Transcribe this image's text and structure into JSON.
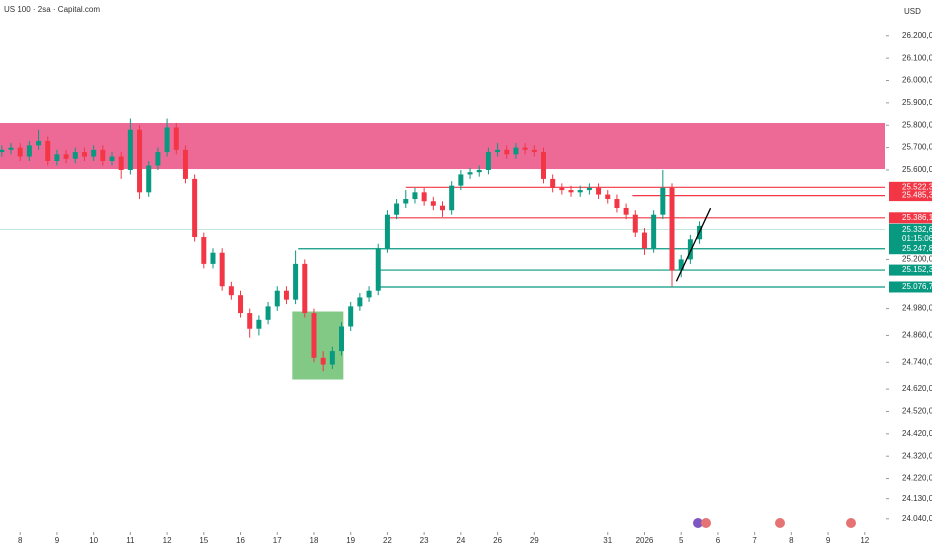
{
  "chart_data": {
    "type": "candlestick",
    "title": "US 100 · 2sa · Capital.com",
    "currency": "USD",
    "up_color": "#089981",
    "down_color": "#f23645",
    "xlim": [
      -0.55,
      23.55
    ],
    "ylim": [
      23990,
      26360
    ],
    "yticks": [
      {
        "value": 26200,
        "label": "26.200,0"
      },
      {
        "value": 26100,
        "label": "26.100,0"
      },
      {
        "value": 26000,
        "label": "26.000,0"
      },
      {
        "value": 25900,
        "label": "25.900,0"
      },
      {
        "value": 25800,
        "label": "25.800,0"
      },
      {
        "value": 25700,
        "label": "25.700,0"
      },
      {
        "value": 25600,
        "label": "25.600,0"
      },
      {
        "value": 25200,
        "label": "25.200,0"
      },
      {
        "value": 24980,
        "label": "24.980,0"
      },
      {
        "value": 24860,
        "label": "24.860,0"
      },
      {
        "value": 24740,
        "label": "24.740,0"
      },
      {
        "value": 24620,
        "label": "24.620,0"
      },
      {
        "value": 24520,
        "label": "24.520,0"
      },
      {
        "value": 24420,
        "label": "24.420,0"
      },
      {
        "value": 24320,
        "label": "24.320,0"
      },
      {
        "value": 24220,
        "label": "24.220,0"
      },
      {
        "value": 24130,
        "label": "24.130,0"
      },
      {
        "value": 24040,
        "label": "24.040,0"
      }
    ],
    "xticks": [
      {
        "value": 0,
        "label": "8"
      },
      {
        "value": 1,
        "label": "9"
      },
      {
        "value": 2,
        "label": "10"
      },
      {
        "value": 3,
        "label": "11"
      },
      {
        "value": 4,
        "label": "12"
      },
      {
        "value": 5,
        "label": "15"
      },
      {
        "value": 6,
        "label": "16"
      },
      {
        "value": 7,
        "label": "17"
      },
      {
        "value": 8,
        "label": "18"
      },
      {
        "value": 9,
        "label": "19"
      },
      {
        "value": 10,
        "label": "22"
      },
      {
        "value": 11,
        "label": "23"
      },
      {
        "value": 12,
        "label": "24"
      },
      {
        "value": 13,
        "label": "26"
      },
      {
        "value": 14,
        "label": "29"
      },
      {
        "value": 16,
        "label": "31"
      },
      {
        "value": 17,
        "label": "2026"
      },
      {
        "value": 18,
        "label": "5"
      },
      {
        "value": 19,
        "label": "6"
      },
      {
        "value": 20,
        "label": "7"
      },
      {
        "value": 21,
        "label": "8"
      },
      {
        "value": 22,
        "label": "9"
      },
      {
        "value": 23,
        "label": "12"
      }
    ],
    "x": [
      -0.5,
      -0.25,
      0,
      0.25,
      0.5,
      0.75,
      1,
      1.25,
      1.5,
      1.75,
      2,
      2.25,
      2.5,
      2.75,
      3,
      3.25,
      3.5,
      3.75,
      4,
      4.25,
      4.5,
      4.75,
      5,
      5.25,
      5.5,
      5.75,
      6,
      6.25,
      6.5,
      6.75,
      7,
      7.25,
      7.5,
      7.75,
      8,
      8.25,
      8.5,
      8.75,
      9,
      9.25,
      9.5,
      9.75,
      10,
      10.25,
      10.5,
      10.75,
      11,
      11.25,
      11.5,
      11.75,
      12,
      12.25,
      12.5,
      12.75,
      13,
      13.25,
      13.5,
      13.75,
      14,
      14.25,
      14.5,
      14.75,
      15,
      15.25,
      15.5,
      15.75,
      16,
      16.25,
      16.5,
      16.75,
      17,
      17.25,
      17.5,
      17.75,
      18,
      18.25,
      18.5
    ],
    "open": [
      25680,
      25690,
      25700,
      25660,
      25710,
      25730,
      25640,
      25670,
      25650,
      25680,
      25660,
      25690,
      25640,
      25660,
      25600,
      25780,
      25500,
      25620,
      25680,
      25790,
      25690,
      25560,
      25300,
      25180,
      25230,
      25080,
      25040,
      24960,
      24890,
      24930,
      24990,
      25060,
      25020,
      25180,
      24960,
      24760,
      24730,
      24790,
      24900,
      24990,
      25030,
      25060,
      25250,
      25400,
      25450,
      25470,
      25500,
      25460,
      25440,
      25420,
      25530,
      25580,
      25590,
      25600,
      25680,
      25690,
      25670,
      25700,
      25690,
      25680,
      25560,
      25520,
      25510,
      25500,
      25510,
      25520,
      25490,
      25470,
      25430,
      25400,
      25320,
      25250,
      25400,
      25520,
      25150,
      25200,
      25290
    ],
    "high": [
      25710,
      25720,
      25720,
      25730,
      25780,
      25750,
      25690,
      25690,
      25700,
      25700,
      25710,
      25710,
      25680,
      25680,
      25830,
      25800,
      25640,
      25700,
      25830,
      25810,
      25710,
      25580,
      25320,
      25250,
      25250,
      25100,
      25060,
      24980,
      24950,
      25010,
      25080,
      25080,
      25240,
      25200,
      24980,
      24790,
      24810,
      24920,
      25010,
      25050,
      25080,
      25270,
      25420,
      25470,
      25510,
      25520,
      25520,
      25480,
      25460,
      25550,
      25600,
      25610,
      25620,
      25700,
      25720,
      25710,
      25720,
      25720,
      25710,
      25700,
      25580,
      25540,
      25530,
      25530,
      25540,
      25540,
      25510,
      25490,
      25450,
      25420,
      25340,
      25420,
      25600,
      25540,
      25220,
      25310,
      25370
    ],
    "low": [
      25660,
      25670,
      25640,
      25640,
      25690,
      25620,
      25620,
      25630,
      25630,
      25640,
      25640,
      25620,
      25620,
      25560,
      25580,
      25470,
      25480,
      25600,
      25660,
      25670,
      25540,
      25280,
      25160,
      25160,
      25060,
      25020,
      24940,
      24850,
      24860,
      24910,
      24970,
      25000,
      25000,
      24940,
      24740,
      24700,
      24710,
      24770,
      24880,
      24970,
      25010,
      25040,
      25230,
      25380,
      25430,
      25450,
      25440,
      25420,
      25390,
      25400,
      25510,
      25560,
      25570,
      25580,
      25660,
      25650,
      25650,
      25670,
      25660,
      25540,
      25500,
      25490,
      25480,
      25480,
      25490,
      25470,
      25450,
      25410,
      25380,
      25300,
      25220,
      25230,
      25380,
      25080,
      25120,
      25180,
      25270
    ],
    "close": [
      25690,
      25700,
      25660,
      25710,
      25730,
      25640,
      25670,
      25650,
      25680,
      25660,
      25690,
      25640,
      25660,
      25600,
      25780,
      25500,
      25620,
      25680,
      25790,
      25690,
      25560,
      25300,
      25180,
      25230,
      25080,
      25040,
      24960,
      24890,
      24930,
      24990,
      25060,
      25020,
      25180,
      24960,
      24760,
      24730,
      24790,
      24900,
      24990,
      25030,
      25060,
      25250,
      25400,
      25450,
      25470,
      25500,
      25460,
      25440,
      25420,
      25530,
      25580,
      25590,
      25600,
      25680,
      25690,
      25670,
      25700,
      25690,
      25680,
      25560,
      25520,
      25510,
      25500,
      25510,
      25520,
      25490,
      25470,
      25430,
      25400,
      25320,
      25250,
      25400,
      25520,
      25150,
      25200,
      25290,
      25350
    ],
    "zones": [
      {
        "low": 25604,
        "high": 25810,
        "color": "#ee6a96"
      },
      {
        "x0": 7.41,
        "x1": 8.8,
        "low": 24663,
        "high": 24967,
        "color": "#6cc070"
      }
    ],
    "levels": [
      {
        "value": 25522.3,
        "label": "25.522,3",
        "color": "#f23645",
        "from": 10.5
      },
      {
        "value": 25485.3,
        "label": "25.485,3",
        "color": "#f23645",
        "from": 16.67
      },
      {
        "value": 25386.1,
        "label": "25.386,1",
        "color": "#f23645",
        "from": 9.95
      },
      {
        "value": 25247.8,
        "label": "25.247,8",
        "color": "#089981",
        "from": 7.57
      },
      {
        "value": 25152.3,
        "label": "25.152,3",
        "color": "#089981",
        "from": 9.8
      },
      {
        "value": 25076.7,
        "label": "25.076,7",
        "color": "#089981",
        "from": 9.75
      }
    ],
    "last": {
      "value": 25332.6,
      "label": "25.332,6",
      "countdown": "01:15:06",
      "color": "#089981"
    },
    "trendline": {
      "x": [
        17.87,
        18.8
      ],
      "y": [
        25102,
        25429
      ],
      "color": "#000000"
    }
  }
}
